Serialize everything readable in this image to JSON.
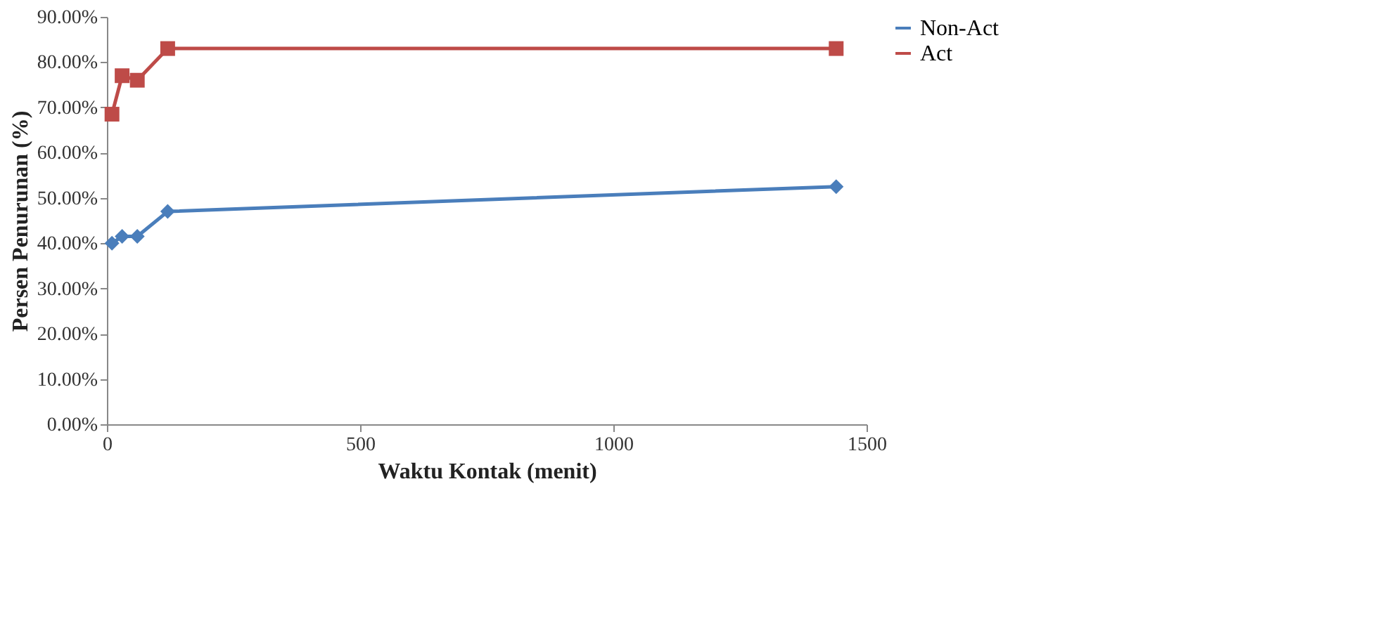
{
  "chart_data": {
    "type": "line",
    "xlabel": "Waktu  Kontak (menit)",
    "ylabel": "Persen Penurunan (%)",
    "x": [
      10,
      30,
      60,
      120,
      1440
    ],
    "series": [
      {
        "name": "Non-Act",
        "color": "#4a7ebb",
        "marker": "diamond",
        "values": [
          40,
          41.5,
          41.5,
          47,
          52.5
        ]
      },
      {
        "name": "Act",
        "color": "#be4b48",
        "marker": "square",
        "values": [
          68.5,
          77,
          76,
          83,
          83
        ]
      }
    ],
    "xlim": [
      0,
      1500
    ],
    "xticks": [
      0,
      500,
      1000,
      1500
    ],
    "ylim": [
      0,
      90
    ],
    "yticks": [
      {
        "value": 0,
        "label": "0.00%"
      },
      {
        "value": 10,
        "label": "10.00%"
      },
      {
        "value": 20,
        "label": "20.00%"
      },
      {
        "value": 30,
        "label": "30.00%"
      },
      {
        "value": 40,
        "label": "40.00%"
      },
      {
        "value": 50,
        "label": "50.00%"
      },
      {
        "value": 60,
        "label": "60.00%"
      },
      {
        "value": 70,
        "label": "70.00%"
      },
      {
        "value": 80,
        "label": "80.00%"
      },
      {
        "value": 90,
        "label": "90.00%"
      }
    ],
    "legend": "right",
    "grid": false,
    "line_style": "solid"
  }
}
